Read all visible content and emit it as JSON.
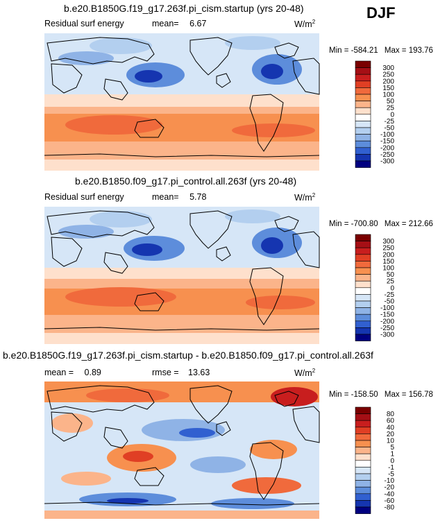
{
  "season": "DJF",
  "panels": [
    {
      "title": "b.e20.B1850G.f19_g17.263f.pi_cism.startup (yrs 20-48)",
      "field": "Residual surf energy",
      "mean_label": "mean=",
      "mean_value": "6.67",
      "units": "W/m",
      "units_exp": "2",
      "min_label": "Min =",
      "min_value": "-584.21",
      "max_label": "Max =",
      "max_value": "193.76",
      "colorbar": {
        "levels": [
          "300",
          "250",
          "200",
          "150",
          "100",
          "50",
          "25",
          "0",
          "-25",
          "-50",
          "-100",
          "-150",
          "-200",
          "-250",
          "-300"
        ],
        "colors": [
          "#7a0000",
          "#a50f15",
          "#c81e1e",
          "#e03f24",
          "#f06a3c",
          "#f7904f",
          "#fbb48a",
          "#fee0cc",
          "#ffffff",
          "#d6e6f7",
          "#b3cfef",
          "#8fb3e6",
          "#5d8ddb",
          "#3160d0",
          "#1535b0",
          "#000080"
        ]
      }
    },
    {
      "title": "b.e20.B1850.f09_g17.pi_control.all.263f (yrs 20-48)",
      "field": "Residual surf energy",
      "mean_label": "mean=",
      "mean_value": "5.78",
      "units": "W/m",
      "units_exp": "2",
      "min_label": "Min =",
      "min_value": "-700.80",
      "max_label": "Max =",
      "max_value": "212.66",
      "colorbar": {
        "levels": [
          "300",
          "250",
          "200",
          "150",
          "100",
          "50",
          "25",
          "0",
          "-25",
          "-50",
          "-100",
          "-150",
          "-200",
          "-250",
          "-300"
        ],
        "colors": [
          "#7a0000",
          "#a50f15",
          "#c81e1e",
          "#e03f24",
          "#f06a3c",
          "#f7904f",
          "#fbb48a",
          "#fee0cc",
          "#ffffff",
          "#d6e6f7",
          "#b3cfef",
          "#8fb3e6",
          "#5d8ddb",
          "#3160d0",
          "#1535b0",
          "#000080"
        ]
      }
    },
    {
      "title": "b.e20.B1850G.f19_g17.263f.pi_cism.startup - b.e20.B1850.f09_g17.pi_control.all.263f",
      "mean_label": "mean =",
      "mean_value": "0.89",
      "rmse_label": "rmse =",
      "rmse_value": "13.63",
      "units": "W/m",
      "units_exp": "2",
      "min_label": "Min =",
      "min_value": "-158.50",
      "max_label": "Max =",
      "max_value": "156.78",
      "colorbar": {
        "levels": [
          "80",
          "60",
          "40",
          "20",
          "10",
          "5",
          "1",
          "0",
          "-1",
          "-5",
          "-10",
          "-20",
          "-40",
          "-60",
          "-80"
        ],
        "colors": [
          "#7a0000",
          "#a50f15",
          "#c81e1e",
          "#e03f24",
          "#f06a3c",
          "#f7904f",
          "#fbb48a",
          "#fee0cc",
          "#ffffff",
          "#d6e6f7",
          "#b3cfef",
          "#8fb3e6",
          "#5d8ddb",
          "#3160d0",
          "#1535b0",
          "#000080"
        ]
      }
    }
  ],
  "chart_data": [
    {
      "type": "heatmap",
      "title": "b.e20.B1850G.f19_g17.263f.pi_cism.startup (yrs 20-48)",
      "variable": "Residual surf energy",
      "units": "W/m2",
      "mean": 6.67,
      "min": -584.21,
      "max": 193.76,
      "contour_levels": [
        -300,
        -250,
        -200,
        -150,
        -100,
        -50,
        -25,
        0,
        25,
        50,
        100,
        150,
        200,
        250,
        300
      ]
    },
    {
      "type": "heatmap",
      "title": "b.e20.B1850.f09_g17.pi_control.all.263f (yrs 20-48)",
      "variable": "Residual surf energy",
      "units": "W/m2",
      "mean": 5.78,
      "min": -700.8,
      "max": 212.66,
      "contour_levels": [
        -300,
        -250,
        -200,
        -150,
        -100,
        -50,
        -25,
        0,
        25,
        50,
        100,
        150,
        200,
        250,
        300
      ]
    },
    {
      "type": "heatmap",
      "title": "b.e20.B1850G.f19_g17.263f.pi_cism.startup - b.e20.B1850.f09_g17.pi_control.all.263f",
      "units": "W/m2",
      "mean": 0.89,
      "rmse": 13.63,
      "min": -158.5,
      "max": 156.78,
      "contour_levels": [
        -80,
        -60,
        -40,
        -20,
        -10,
        -5,
        -1,
        0,
        1,
        5,
        10,
        20,
        40,
        60,
        80
      ]
    }
  ]
}
